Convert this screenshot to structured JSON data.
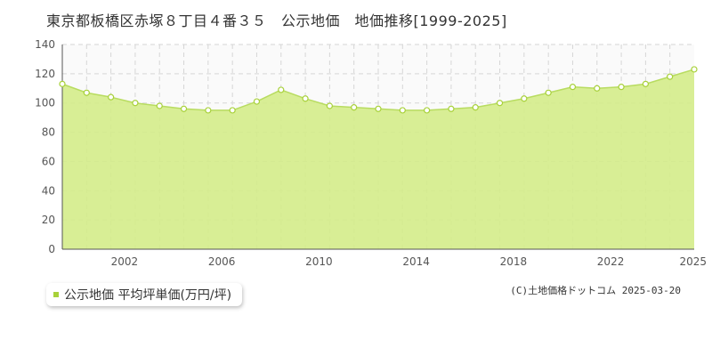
{
  "title": "東京都板橋区赤塚８丁目４番３５　公示地価　地価推移[1999-2025]",
  "legend_label": "公示地価 平均坪単価(万円/坪)",
  "credit": "(C)土地価格ドットコム 2025-03-20",
  "colors": {
    "fill": "#d4ec8a",
    "line": "#b8dc60",
    "point_fill": "#ffffff",
    "point_stroke": "#a8d13a",
    "grid": "#d6d6d6",
    "plot_top_bg": "#fafafa",
    "axis": "#555555"
  },
  "chart_data": {
    "type": "area",
    "title": "",
    "xlabel": "",
    "ylabel": "",
    "x": [
      1999,
      2000,
      2001,
      2002,
      2003,
      2004,
      2005,
      2006,
      2007,
      2008,
      2009,
      2010,
      2011,
      2012,
      2013,
      2014,
      2015,
      2016,
      2017,
      2018,
      2019,
      2020,
      2021,
      2022,
      2023,
      2024,
      2025
    ],
    "series": [
      {
        "name": "公示地価 平均坪単価(万円/坪)",
        "values": [
          113,
          107,
          104,
          100,
          98,
          96,
          95,
          95,
          101,
          109,
          103,
          98,
          97,
          96,
          95,
          95,
          96,
          97,
          100,
          103,
          107,
          111,
          110,
          111,
          113,
          118,
          123
        ]
      }
    ],
    "xlim": [
      1999,
      2025
    ],
    "ylim": [
      0,
      140
    ],
    "yticks": [
      0,
      20,
      40,
      60,
      80,
      100,
      120,
      140
    ],
    "xtick_labels": [
      "2002",
      "2006",
      "2010",
      "2014",
      "2018",
      "2022",
      "2025"
    ],
    "grid": true,
    "legend": "bottom-left"
  }
}
